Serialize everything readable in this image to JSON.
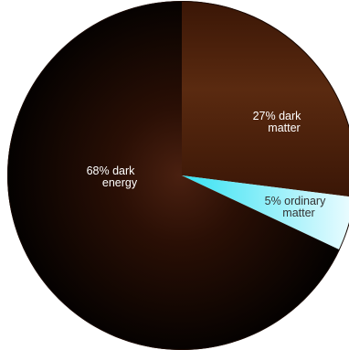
{
  "chart_data": {
    "type": "pie",
    "title": "",
    "slices": [
      {
        "label_lines": [
          "27%  dark",
          "matter"
        ],
        "value": 27,
        "color_light": "#5a2a10",
        "color_dark": "#3a1606",
        "label_color": "#ffffff"
      },
      {
        "label_lines": [
          "5% ordinary",
          "matter"
        ],
        "value": 5,
        "color_light": "#eefcff",
        "color_dark": "#35e2f2",
        "label_color": "#333333"
      },
      {
        "label_lines": [
          "68%  dark",
          "energy"
        ],
        "value": 68,
        "color_light": "#4a2010",
        "color_dark": "#000000",
        "label_color": "#ffffff"
      }
    ],
    "legend": "none"
  }
}
